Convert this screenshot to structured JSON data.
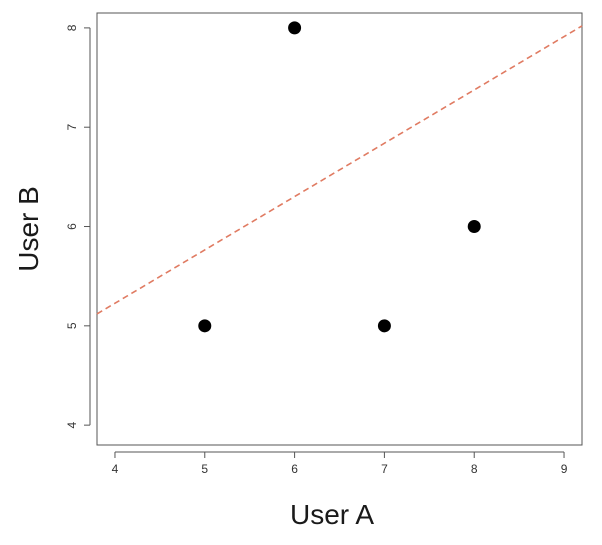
{
  "chart_data": {
    "type": "scatter",
    "title": "",
    "xlabel": "User A",
    "ylabel": "User B",
    "xlim": [
      3.8,
      9.2
    ],
    "ylim": [
      3.8,
      8.15
    ],
    "xticks": [
      4,
      5,
      6,
      7,
      8,
      9
    ],
    "yticks": [
      4,
      5,
      6,
      7,
      8
    ],
    "grid": false,
    "points": [
      {
        "x": 5,
        "y": 5
      },
      {
        "x": 6,
        "y": 8
      },
      {
        "x": 7,
        "y": 5
      },
      {
        "x": 8,
        "y": 6
      }
    ],
    "reference_line": {
      "style": "dashed",
      "color": "#e07b62",
      "points": [
        {
          "x": 3.8,
          "y": 5.12
        },
        {
          "x": 9.2,
          "y": 8.02
        }
      ]
    },
    "point_color": "#000000"
  }
}
